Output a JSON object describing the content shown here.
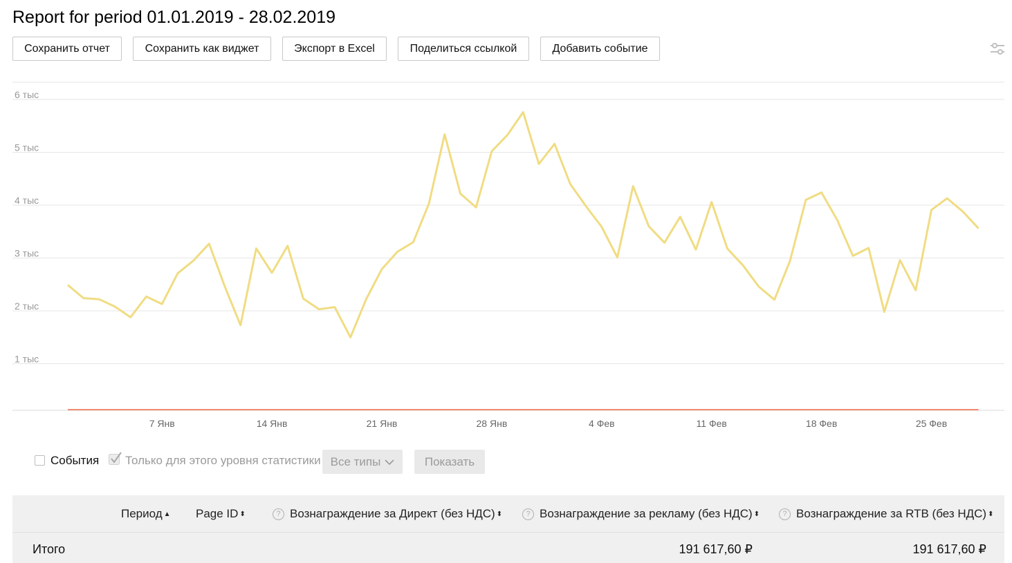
{
  "report": {
    "title": "Report for period 01.01.2019 - 28.02.2019"
  },
  "toolbar": {
    "save_report": "Сохранить отчет",
    "save_widget": "Сохранить как виджет",
    "export_excel": "Экспорт в Excel",
    "share_link": "Поделиться ссылкой",
    "add_event": "Добавить событие",
    "settings_icon": "sliders-icon"
  },
  "chart_data": {
    "type": "line",
    "y_ticks": [
      "1 тыс",
      "2 тыс",
      "3 тыс",
      "4 тыс",
      "5 тыс",
      "6 тыс"
    ],
    "x_ticks": [
      "7 Янв",
      "14 Янв",
      "21 Янв",
      "28 Янв",
      "4 Фев",
      "11 Фев",
      "18 Фев",
      "25 Фев"
    ],
    "ylim": [
      0,
      6000
    ],
    "grid": true,
    "series": [
      {
        "color": "#f0dc82",
        "x_start": "2019-01-01",
        "values": [
          2490,
          2240,
          2220,
          2080,
          1880,
          2270,
          2130,
          2710,
          2950,
          3270,
          2460,
          1730,
          3180,
          2720,
          3230,
          2230,
          2030,
          2070,
          1500,
          2220,
          2790,
          3120,
          3300,
          4030,
          5340,
          4220,
          3960,
          5020,
          5330,
          5760,
          4780,
          5160,
          4400,
          3980,
          3590,
          3010,
          4360,
          3600,
          3290,
          3780,
          3160,
          4060,
          3180,
          2860,
          2460,
          2210,
          2950,
          4100,
          4240,
          3720,
          3040,
          3190,
          1980,
          2960,
          2390,
          3910,
          4130,
          3880,
          3560
        ]
      },
      {
        "color": "#f26b4a",
        "x_start": "2019-01-01",
        "values": [
          0,
          0
        ]
      }
    ]
  },
  "controls": {
    "events_label": "События",
    "level_only_label": "Только для этого уровня статистики",
    "all_types": "Все типы",
    "show": "Показать"
  },
  "table": {
    "headers": {
      "period": "Период",
      "page_id": "Page ID",
      "direct": "Вознаграждение за Директ (без НДС)",
      "ads": "Вознаграждение за рекламу (без НДС)",
      "rtb": "Вознаграждение за RTB (без НДС)"
    },
    "total": {
      "label": "Итого",
      "ads": "191 617,60 ₽",
      "rtb": "191 617,60 ₽"
    }
  }
}
